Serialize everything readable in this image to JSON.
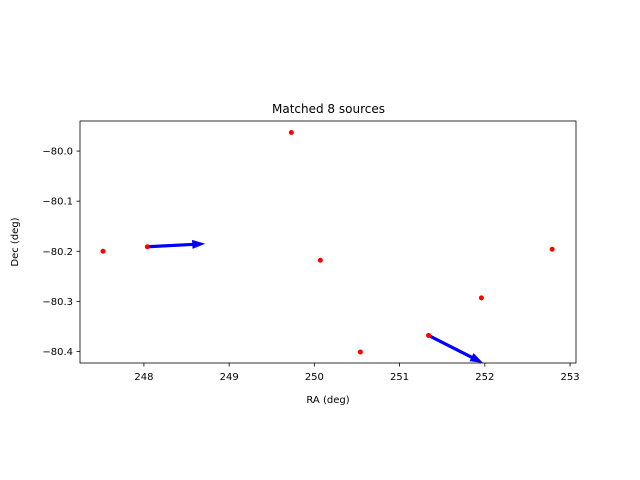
{
  "chart_data": {
    "type": "scatter",
    "title": "Matched 8 sources",
    "xlabel": "RA (deg)",
    "ylabel": "Dec (deg)",
    "xlim": [
      247.25,
      253.07
    ],
    "ylim": [
      -80.423,
      -79.94
    ],
    "x_ticks": [
      248,
      249,
      250,
      251,
      252,
      253
    ],
    "x_tick_labels": [
      "248",
      "249",
      "250",
      "251",
      "252",
      "253"
    ],
    "y_ticks": [
      -80.0,
      -80.1,
      -80.2,
      -80.3,
      -80.4
    ],
    "y_tick_labels": [
      "−80.0",
      "−80.1",
      "−80.2",
      "−80.3",
      "−80.4"
    ],
    "grid": false,
    "points": [
      {
        "x": 247.52,
        "y": -80.2
      },
      {
        "x": 248.04,
        "y": -80.191
      },
      {
        "x": 249.73,
        "y": -79.963
      },
      {
        "x": 250.07,
        "y": -80.218
      },
      {
        "x": 250.54,
        "y": -80.401
      },
      {
        "x": 251.34,
        "y": -80.368
      },
      {
        "x": 251.96,
        "y": -80.293
      },
      {
        "x": 252.79,
        "y": -80.196
      }
    ],
    "vectors": [
      {
        "x": 248.04,
        "y": -80.191,
        "x_end": 248.72,
        "y_end": -80.185
      },
      {
        "x": 251.34,
        "y": -80.368,
        "x_end": 251.98,
        "y_end": -80.423
      }
    ],
    "point_color": "#ff0000",
    "vector_color": "#0000ff"
  }
}
